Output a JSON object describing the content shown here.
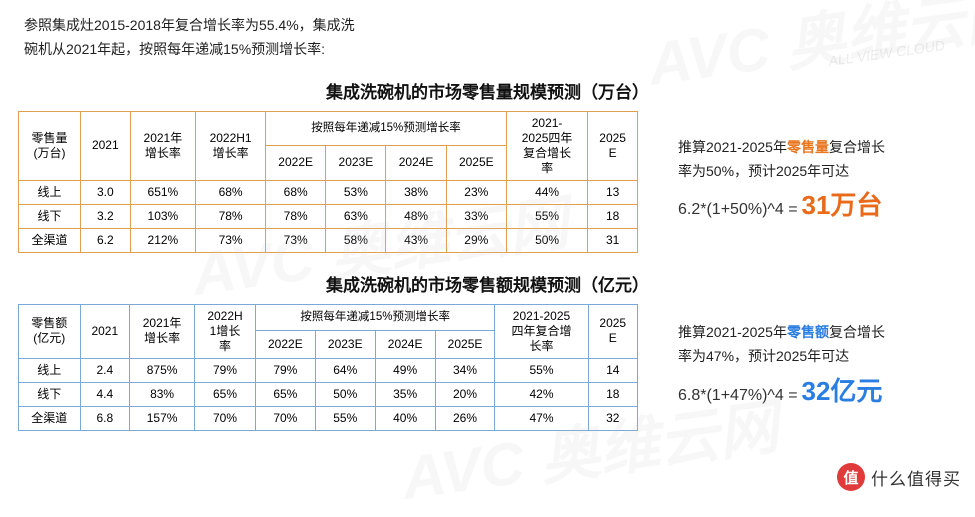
{
  "watermark": {
    "main": "AVC 奥维云网",
    "sub": "ALL VIEW CLOUD"
  },
  "intro_l1": "参照集成灶2015-2018年复合增长率为55.4%，集成洗",
  "intro_l2": "碗机从2021年起，按照每年递减15%预测增长率:",
  "table1": {
    "title": "集成洗碗机的市场零售量规模预测（万台）",
    "h_metric": "零售量\n(万台)",
    "h_2021": "2021",
    "h_g21": "2021年\n增长率",
    "h_g22h1": "2022H1\n增长率",
    "h_group": "按照每年递减15%预测增长率",
    "h_2022e": "2022E",
    "h_2023e": "2023E",
    "h_2024e": "2024E",
    "h_2025e": "2025E",
    "h_cagr": "2021-\n2025四年\n复合增长\n率",
    "h_2025": "2025\nE",
    "rows": [
      {
        "c0": "线上",
        "c1": "3.0",
        "c2": "651%",
        "c3": "68%",
        "c4": "68%",
        "c5": "53%",
        "c6": "38%",
        "c7": "23%",
        "c8": "44%",
        "c9": "13"
      },
      {
        "c0": "线下",
        "c1": "3.2",
        "c2": "103%",
        "c3": "78%",
        "c4": "78%",
        "c5": "63%",
        "c6": "48%",
        "c7": "33%",
        "c8": "55%",
        "c9": "18"
      },
      {
        "c0": "全渠道",
        "c1": "6.2",
        "c2": "212%",
        "c3": "73%",
        "c4": "73%",
        "c5": "58%",
        "c6": "43%",
        "c7": "29%",
        "c8": "50%",
        "c9": "31"
      }
    ]
  },
  "note1": {
    "pre": "推算2021-2025年",
    "kw": "零售量",
    "post1": "复合增长",
    "line2": "率为50%，预计2025年可达",
    "formula": "6.2*(1+50%)^4 =",
    "result": "31万台"
  },
  "table2": {
    "title": "集成洗碗机的市场零售额规模预测（亿元）",
    "h_metric": "零售额\n(亿元)",
    "h_2021": "2021",
    "h_g21": "2021年\n增长率",
    "h_g22h1": "2022H\n1增长\n率",
    "h_group": "按照每年递减15%预测增长率",
    "h_2022e": "2022E",
    "h_2023e": "2023E",
    "h_2024e": "2024E",
    "h_2025e": "2025E",
    "h_cagr": "2021-2025\n四年复合增\n长率",
    "h_2025": "2025\nE",
    "rows": [
      {
        "c0": "线上",
        "c1": "2.4",
        "c2": "875%",
        "c3": "79%",
        "c4": "79%",
        "c5": "64%",
        "c6": "49%",
        "c7": "34%",
        "c8": "55%",
        "c9": "14"
      },
      {
        "c0": "线下",
        "c1": "4.4",
        "c2": "83%",
        "c3": "65%",
        "c4": "65%",
        "c5": "50%",
        "c6": "35%",
        "c7": "20%",
        "c8": "42%",
        "c9": "18"
      },
      {
        "c0": "全渠道",
        "c1": "6.8",
        "c2": "157%",
        "c3": "70%",
        "c4": "70%",
        "c5": "55%",
        "c6": "40%",
        "c7": "26%",
        "c8": "47%",
        "c9": "32"
      }
    ]
  },
  "note2": {
    "pre": "推算2021-2025年",
    "kw": "零售额",
    "post1": "复合增长",
    "line2": "率为47%，预计2025年可达",
    "formula": "6.8*(1+47%)^4 =",
    "result": "32亿元"
  },
  "brand": {
    "badge": "值",
    "text": "什么值得买"
  },
  "colors": {
    "orange_border": "#f0a030",
    "blue_border": "#4a90d9",
    "kw_orange": "#e87722",
    "kw_blue": "#2a7de1",
    "result_orange": "#e86a1a",
    "result_blue": "#2a7de1",
    "brand_red": "#e03a3a"
  }
}
